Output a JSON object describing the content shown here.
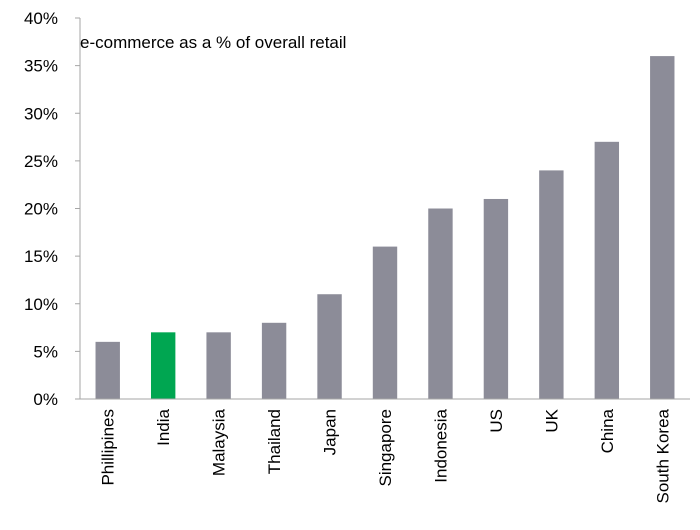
{
  "chart_data": {
    "type": "bar",
    "title": "e-commerce as a % of overall retail",
    "categories": [
      "Phillipines",
      "India",
      "Malaysia",
      "Thailand",
      "Japan",
      "Singapore",
      "Indonesia",
      "US",
      "UK",
      "China",
      "South Korea"
    ],
    "values": [
      6,
      7,
      7,
      8,
      11,
      16,
      20,
      21,
      24,
      27,
      36
    ],
    "ylim": [
      0,
      40
    ],
    "yticks": [
      "0%",
      "5%",
      "10%",
      "15%",
      "20%",
      "25%",
      "30%",
      "35%",
      "40%"
    ],
    "xlabel": "",
    "ylabel": "",
    "grid": false,
    "bar_color": "#8c8c98",
    "highlight_category": "India",
    "highlight_color": "#00a651",
    "axis_color": "#a6a6a6"
  }
}
